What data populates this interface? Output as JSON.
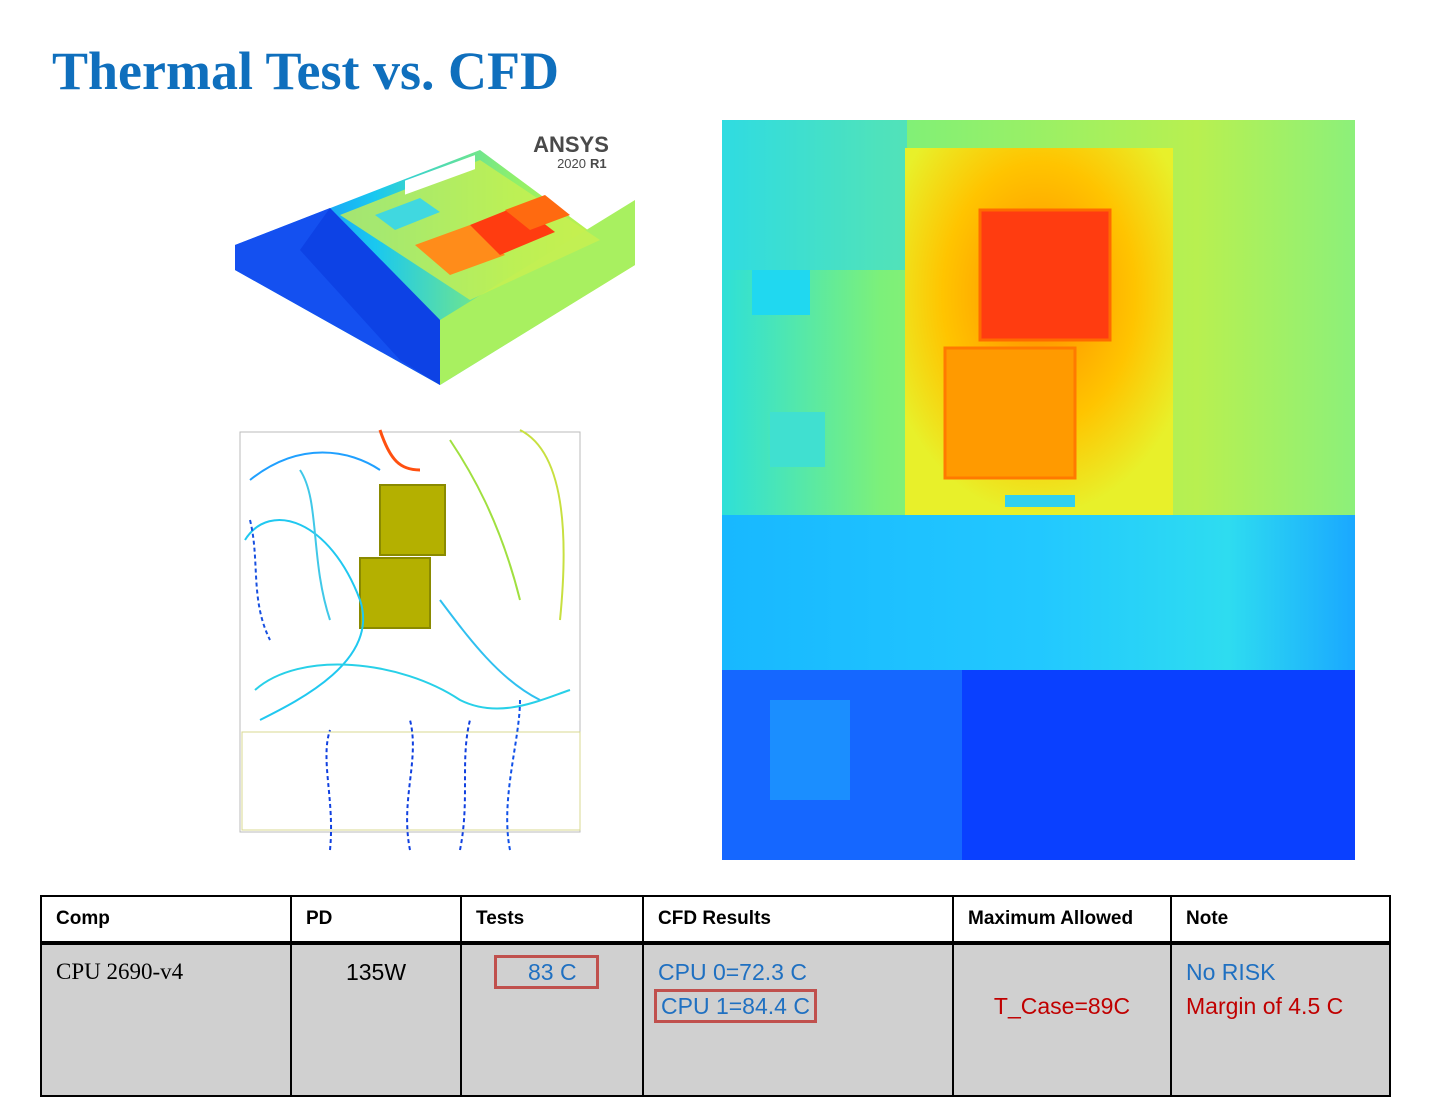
{
  "title": "Thermal Test vs. CFD",
  "logo": {
    "name": "ANSYS",
    "version": "2020",
    "release": "R1"
  },
  "table": {
    "headers": [
      "Comp",
      "PD",
      "Tests",
      "CFD Results",
      "Maximum Allowed",
      "Note"
    ],
    "rows": [
      [
        "CPU 2690-v4",
        "135W",
        "83 C",
        [
          "CPU 0=72.3 C",
          "CPU 1=84.4 C"
        ],
        "T_Case=89C",
        [
          "No RISK",
          "Margin of 4.5 C"
        ]
      ]
    ]
  }
}
